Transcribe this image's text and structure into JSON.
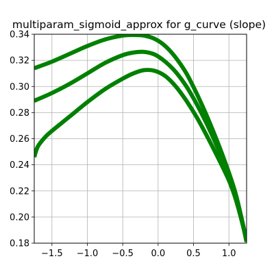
{
  "chart_data": {
    "type": "line",
    "title": "multiparam_sigmoid_approx for g_curve (slope)",
    "xlabel": "",
    "ylabel": "",
    "xlim": [
      -1.75,
      1.25
    ],
    "ylim": [
      0.18,
      0.34
    ],
    "x_ticks": [
      "−1.5",
      "−1.0",
      "−0.5",
      "0.0",
      "0.5",
      "1.0"
    ],
    "x_tick_values": [
      -1.5,
      -1.0,
      -0.5,
      0.0,
      0.5,
      1.0
    ],
    "y_ticks": [
      "0.18",
      "0.20",
      "0.22",
      "0.24",
      "0.26",
      "0.28",
      "0.30",
      "0.32",
      "0.34"
    ],
    "y_tick_values": [
      0.18,
      0.2,
      0.22,
      0.24,
      0.26,
      0.28,
      0.3,
      0.32,
      0.34
    ],
    "grid": true,
    "line_color": "#008000",
    "series": [
      {
        "x": [
          -1.75,
          -1.5,
          -1.25,
          -1.0,
          -0.75,
          -0.5,
          -0.35,
          -0.2,
          -0.05,
          0.1,
          0.25,
          0.4,
          0.55,
          0.7,
          0.85,
          1.0,
          1.1,
          1.2,
          1.25
        ],
        "y": [
          0.314,
          0.319,
          0.325,
          0.331,
          0.336,
          0.339,
          0.3395,
          0.339,
          0.3365,
          0.331,
          0.322,
          0.31,
          0.294,
          0.276,
          0.256,
          0.234,
          0.217,
          0.194,
          0.181
        ]
      },
      {
        "x": [
          -1.75,
          -1.5,
          -1.25,
          -1.0,
          -0.75,
          -0.5,
          -0.35,
          -0.2,
          -0.05,
          0.1,
          0.25,
          0.4,
          0.55,
          0.7,
          0.85,
          1.0,
          1.1,
          1.2,
          1.25
        ],
        "y": [
          0.289,
          0.295,
          0.302,
          0.31,
          0.318,
          0.324,
          0.326,
          0.3265,
          0.3245,
          0.319,
          0.311,
          0.3,
          0.286,
          0.27,
          0.252,
          0.232,
          0.216,
          0.194,
          0.181
        ]
      },
      {
        "x": [
          -1.75,
          -1.7,
          -1.6,
          -1.5,
          -1.25,
          -1.0,
          -0.75,
          -0.5,
          -0.35,
          -0.2,
          -0.05,
          0.1,
          0.25,
          0.4,
          0.55,
          0.7,
          0.85,
          1.0,
          1.1,
          1.2,
          1.25
        ],
        "y": [
          0.246,
          0.254,
          0.261,
          0.266,
          0.277,
          0.288,
          0.298,
          0.306,
          0.31,
          0.3125,
          0.312,
          0.308,
          0.3,
          0.289,
          0.276,
          0.261,
          0.245,
          0.228,
          0.213,
          0.193,
          0.181
        ]
      }
    ]
  }
}
